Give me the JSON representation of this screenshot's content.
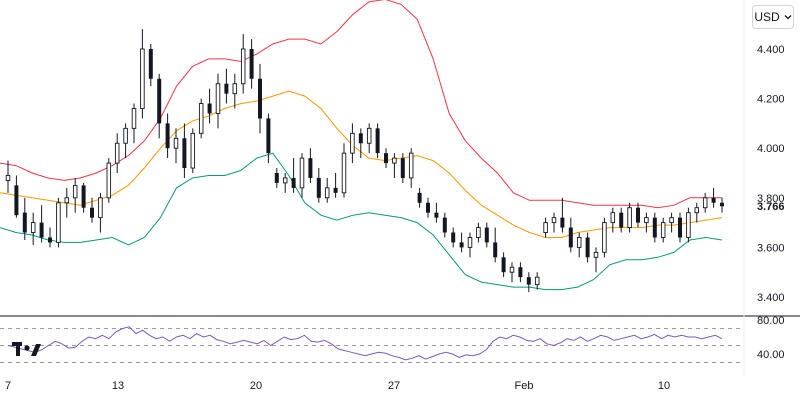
{
  "toolbar": {
    "currency": "USD",
    "currency_icon": "chevron-down-icon"
  },
  "logo": "TV",
  "colors": {
    "up": "#131722",
    "down": "#131722",
    "bb_upper": "#f23645",
    "bb_basis": "#ff9800",
    "bb_lower": "#089981",
    "rsi": "#7e57c2",
    "grid_dash": "#787b86"
  },
  "chart_data": [
    {
      "type": "candlestick",
      "title": "",
      "x_ticks": [
        "7",
        "13",
        "20",
        "27",
        "Feb",
        "10"
      ],
      "y_ticks": [
        "4.400",
        "4.200",
        "4.000",
        "3.800",
        "3.600",
        "3.400"
      ],
      "ylim": [
        3.33,
        4.55
      ],
      "last_price": "3.766",
      "grid": false,
      "indicators": [
        "bollinger-bands"
      ],
      "candles": [
        [
          3.87,
          3.95,
          3.82,
          3.89
        ],
        [
          3.85,
          3.89,
          3.72,
          3.73
        ],
        [
          3.74,
          3.8,
          3.63,
          3.66
        ],
        [
          3.66,
          3.74,
          3.61,
          3.7
        ],
        [
          3.7,
          3.77,
          3.62,
          3.64
        ],
        [
          3.64,
          3.68,
          3.6,
          3.62
        ],
        [
          3.62,
          3.8,
          3.6,
          3.78
        ],
        [
          3.78,
          3.84,
          3.72,
          3.8
        ],
        [
          3.8,
          3.88,
          3.74,
          3.85
        ],
        [
          3.85,
          3.86,
          3.74,
          3.76
        ],
        [
          3.76,
          3.8,
          3.7,
          3.72
        ],
        [
          3.72,
          3.82,
          3.66,
          3.8
        ],
        [
          3.8,
          3.96,
          3.78,
          3.94
        ],
        [
          3.94,
          4.06,
          3.9,
          4.02
        ],
        [
          4.02,
          4.1,
          3.96,
          4.08
        ],
        [
          4.08,
          4.18,
          4.02,
          4.16
        ],
        [
          4.16,
          4.48,
          4.12,
          4.4
        ],
        [
          4.4,
          4.42,
          4.25,
          4.28
        ],
        [
          4.28,
          4.3,
          4.04,
          4.1
        ],
        [
          4.1,
          4.14,
          3.96,
          4.0
        ],
        [
          4.0,
          4.08,
          3.94,
          4.04
        ],
        [
          4.04,
          4.1,
          3.88,
          3.92
        ],
        [
          3.92,
          4.08,
          3.9,
          4.06
        ],
        [
          4.06,
          4.2,
          4.04,
          4.18
        ],
        [
          4.18,
          4.24,
          4.1,
          4.14
        ],
        [
          4.14,
          4.3,
          4.08,
          4.26
        ],
        [
          4.26,
          4.32,
          4.18,
          4.22
        ],
        [
          4.22,
          4.3,
          4.16,
          4.26
        ],
        [
          4.26,
          4.46,
          4.22,
          4.4
        ],
        [
          4.4,
          4.44,
          4.24,
          4.28
        ],
        [
          4.28,
          4.34,
          4.06,
          4.12
        ],
        [
          4.12,
          4.14,
          3.94,
          3.98
        ],
        [
          3.9,
          3.92,
          3.84,
          3.86
        ],
        [
          3.86,
          3.9,
          3.82,
          3.88
        ],
        [
          3.88,
          3.96,
          3.82,
          3.84
        ],
        [
          3.84,
          3.98,
          3.8,
          3.96
        ],
        [
          3.96,
          4.0,
          3.86,
          3.88
        ],
        [
          3.88,
          3.92,
          3.78,
          3.8
        ],
        [
          3.8,
          3.88,
          3.78,
          3.84
        ],
        [
          3.84,
          3.9,
          3.8,
          3.82
        ],
        [
          3.82,
          4.02,
          3.8,
          3.98
        ],
        [
          3.98,
          4.1,
          3.94,
          4.06
        ],
        [
          4.06,
          4.08,
          3.96,
          4.02
        ],
        [
          4.02,
          4.1,
          3.98,
          4.08
        ],
        [
          4.08,
          4.1,
          3.96,
          3.98
        ],
        [
          3.98,
          4.0,
          3.92,
          3.94
        ],
        [
          3.94,
          3.98,
          3.88,
          3.96
        ],
        [
          3.96,
          3.98,
          3.86,
          3.88
        ],
        [
          3.88,
          4.0,
          3.84,
          3.98
        ],
        [
          3.82,
          3.84,
          3.76,
          3.78
        ],
        [
          3.78,
          3.8,
          3.72,
          3.74
        ],
        [
          3.74,
          3.78,
          3.7,
          3.72
        ],
        [
          3.72,
          3.74,
          3.64,
          3.66
        ],
        [
          3.66,
          3.68,
          3.6,
          3.62
        ],
        [
          3.62,
          3.66,
          3.58,
          3.6
        ],
        [
          3.6,
          3.66,
          3.56,
          3.64
        ],
        [
          3.64,
          3.7,
          3.62,
          3.68
        ],
        [
          3.68,
          3.7,
          3.6,
          3.62
        ],
        [
          3.62,
          3.68,
          3.54,
          3.56
        ],
        [
          3.56,
          3.58,
          3.48,
          3.5
        ],
        [
          3.5,
          3.54,
          3.46,
          3.52
        ],
        [
          3.52,
          3.54,
          3.46,
          3.48
        ],
        [
          3.48,
          3.5,
          3.42,
          3.45
        ],
        [
          3.45,
          3.5,
          3.43,
          3.48
        ],
        [
          3.66,
          3.72,
          3.64,
          3.7
        ],
        [
          3.7,
          3.74,
          3.66,
          3.72
        ],
        [
          3.72,
          3.8,
          3.66,
          3.68
        ],
        [
          3.68,
          3.72,
          3.58,
          3.6
        ],
        [
          3.6,
          3.66,
          3.56,
          3.64
        ],
        [
          3.64,
          3.66,
          3.54,
          3.56
        ],
        [
          3.56,
          3.6,
          3.5,
          3.58
        ],
        [
          3.58,
          3.72,
          3.56,
          3.7
        ],
        [
          3.7,
          3.76,
          3.66,
          3.74
        ],
        [
          3.74,
          3.76,
          3.66,
          3.68
        ],
        [
          3.68,
          3.78,
          3.66,
          3.76
        ],
        [
          3.76,
          3.78,
          3.68,
          3.7
        ],
        [
          3.7,
          3.74,
          3.66,
          3.72
        ],
        [
          3.72,
          3.74,
          3.62,
          3.64
        ],
        [
          3.64,
          3.72,
          3.62,
          3.7
        ],
        [
          3.7,
          3.74,
          3.66,
          3.72
        ],
        [
          3.72,
          3.74,
          3.62,
          3.64
        ],
        [
          3.64,
          3.76,
          3.62,
          3.74
        ],
        [
          3.74,
          3.78,
          3.7,
          3.76
        ],
        [
          3.76,
          3.82,
          3.74,
          3.8
        ],
        [
          3.8,
          3.84,
          3.76,
          3.78
        ],
        [
          3.78,
          3.8,
          3.74,
          3.766
        ]
      ],
      "bb_upper": [
        3.94,
        3.93,
        3.9,
        3.88,
        3.87,
        3.88,
        3.9,
        3.93,
        3.97,
        4.03,
        4.12,
        4.25,
        4.33,
        4.36,
        4.36,
        4.35,
        4.38,
        4.42,
        4.44,
        4.44,
        4.42,
        4.47,
        4.54,
        4.59,
        4.6,
        4.58,
        4.52,
        4.36,
        4.14,
        4.03,
        3.96,
        3.9,
        3.82,
        3.79,
        3.79,
        3.79,
        3.78,
        3.77,
        3.77,
        3.77,
        3.77,
        3.76,
        3.77,
        3.8,
        3.8,
        3.8
      ],
      "bb_basis": [
        3.82,
        3.81,
        3.8,
        3.79,
        3.78,
        3.77,
        3.79,
        3.81,
        3.85,
        3.92,
        4.0,
        4.07,
        4.11,
        4.13,
        4.16,
        4.18,
        4.19,
        4.21,
        4.23,
        4.21,
        4.16,
        4.08,
        4.01,
        3.96,
        3.95,
        3.96,
        3.97,
        3.95,
        3.9,
        3.83,
        3.77,
        3.73,
        3.69,
        3.66,
        3.64,
        3.64,
        3.66,
        3.67,
        3.68,
        3.68,
        3.68,
        3.69,
        3.69,
        3.7,
        3.71,
        3.72
      ],
      "bb_lower": [
        3.68,
        3.66,
        3.65,
        3.63,
        3.62,
        3.62,
        3.63,
        3.64,
        3.61,
        3.64,
        3.72,
        3.84,
        3.88,
        3.89,
        3.89,
        3.91,
        3.96,
        3.98,
        3.89,
        3.78,
        3.73,
        3.71,
        3.73,
        3.74,
        3.73,
        3.72,
        3.7,
        3.65,
        3.57,
        3.49,
        3.46,
        3.45,
        3.44,
        3.44,
        3.43,
        3.43,
        3.44,
        3.47,
        3.53,
        3.55,
        3.55,
        3.56,
        3.58,
        3.63,
        3.64,
        3.63
      ]
    },
    {
      "type": "line",
      "title": "",
      "y_ticks": [
        "80.00",
        "40.00"
      ],
      "ylim": [
        25,
        85
      ],
      "bands": [
        70,
        50,
        30
      ],
      "series": [
        {
          "values": [
            50,
            48,
            46,
            44,
            42,
            45,
            50,
            55,
            52,
            47,
            48,
            55,
            60,
            58,
            62,
            58,
            66,
            70,
            72,
            64,
            68,
            62,
            58,
            60,
            55,
            60,
            62,
            58,
            64,
            60,
            62,
            57,
            55,
            52,
            54,
            56,
            54,
            52,
            56,
            50,
            55,
            60,
            57,
            58,
            62,
            55,
            54,
            56,
            52,
            46,
            44,
            42,
            40,
            38,
            40,
            42,
            41,
            38,
            36,
            33,
            35,
            38,
            34,
            37,
            40,
            42,
            40,
            36,
            39,
            38,
            40,
            45,
            55,
            60,
            58,
            62,
            60,
            56,
            55,
            58,
            52,
            50,
            53,
            58,
            56,
            60,
            55,
            58,
            62,
            60,
            56,
            58,
            60,
            62,
            58,
            60,
            63,
            58,
            62,
            60,
            62,
            60,
            60,
            58,
            60,
            62,
            58
          ]
        }
      ]
    }
  ]
}
